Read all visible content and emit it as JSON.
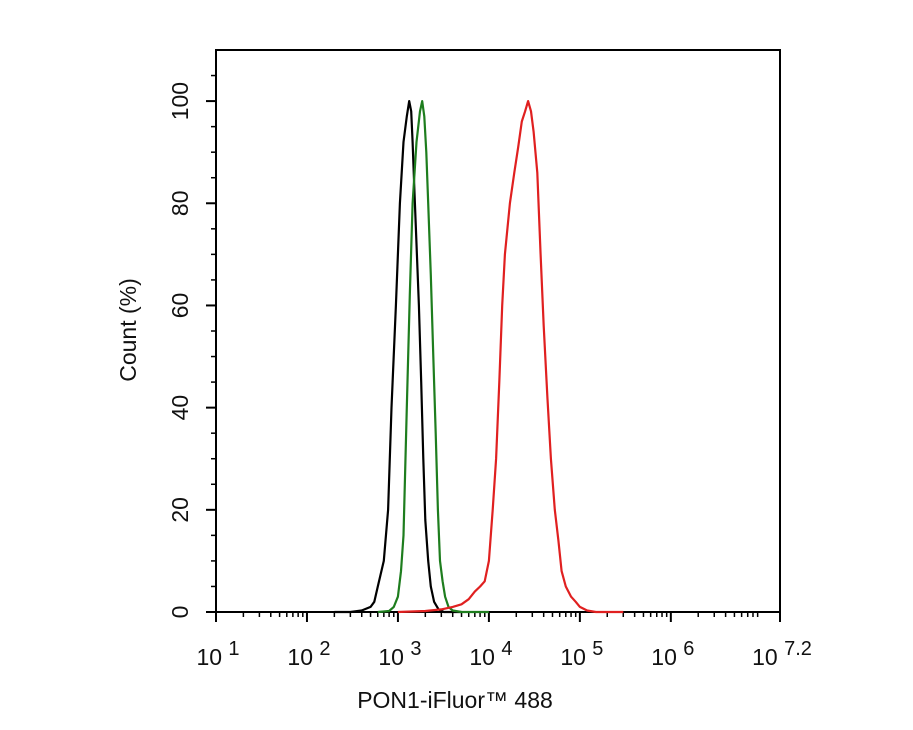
{
  "chart_data": {
    "type": "line",
    "title": "",
    "xlabel": "PON1-iFluor™ 488",
    "ylabel": "Count  (%)",
    "x_scale": "log10",
    "xlim": [
      10,
      15848931.92
    ],
    "ylim": [
      0,
      110
    ],
    "grid": false,
    "legend": "none",
    "x_ticks": [
      {
        "base": "10",
        "exp": "1"
      },
      {
        "base": "10",
        "exp": "2"
      },
      {
        "base": "10",
        "exp": "3"
      },
      {
        "base": "10",
        "exp": "4"
      },
      {
        "base": "10",
        "exp": "5"
      },
      {
        "base": "10",
        "exp": "6"
      },
      {
        "base": "10",
        "exp": "7.2"
      }
    ],
    "y_ticks": [
      "0",
      "20",
      "40",
      "60",
      "80",
      "100"
    ],
    "series": [
      {
        "color": "#000000",
        "points": [
          [
            200,
            0
          ],
          [
            300,
            0
          ],
          [
            400,
            0.3
          ],
          [
            500,
            1
          ],
          [
            550,
            2
          ],
          [
            600,
            5
          ],
          [
            700,
            10
          ],
          [
            780,
            20
          ],
          [
            850,
            40
          ],
          [
            950,
            60
          ],
          [
            1050,
            80
          ],
          [
            1150,
            92
          ],
          [
            1250,
            97
          ],
          [
            1330,
            100
          ],
          [
            1400,
            98
          ],
          [
            1450,
            92
          ],
          [
            1520,
            82
          ],
          [
            1600,
            72
          ],
          [
            1700,
            60
          ],
          [
            1800,
            45
          ],
          [
            1900,
            30
          ],
          [
            2000,
            18
          ],
          [
            2150,
            10
          ],
          [
            2300,
            5
          ],
          [
            2500,
            2
          ],
          [
            2800,
            0.5
          ],
          [
            3200,
            0
          ],
          [
            5000,
            0
          ]
        ]
      },
      {
        "color": "#1e7d1e",
        "points": [
          [
            600,
            0
          ],
          [
            800,
            0.2
          ],
          [
            900,
            1
          ],
          [
            1000,
            3
          ],
          [
            1080,
            8
          ],
          [
            1150,
            15
          ],
          [
            1250,
            40
          ],
          [
            1350,
            62
          ],
          [
            1450,
            80
          ],
          [
            1600,
            92
          ],
          [
            1750,
            98
          ],
          [
            1850,
            100
          ],
          [
            1950,
            97
          ],
          [
            2050,
            90
          ],
          [
            2150,
            80
          ],
          [
            2300,
            66
          ],
          [
            2450,
            50
          ],
          [
            2600,
            35
          ],
          [
            2750,
            20
          ],
          [
            2900,
            10
          ],
          [
            3100,
            6
          ],
          [
            3300,
            3
          ],
          [
            3600,
            1
          ],
          [
            4000,
            0.3
          ],
          [
            5000,
            0
          ],
          [
            10000,
            0
          ]
        ]
      },
      {
        "color": "#e02020",
        "points": [
          [
            1000,
            0
          ],
          [
            2000,
            0.2
          ],
          [
            3000,
            0.5
          ],
          [
            4000,
            1
          ],
          [
            5000,
            1.5
          ],
          [
            6000,
            2.5
          ],
          [
            7000,
            4
          ],
          [
            8000,
            5
          ],
          [
            9000,
            6
          ],
          [
            10000,
            10
          ],
          [
            11000,
            20
          ],
          [
            12000,
            30
          ],
          [
            13000,
            45
          ],
          [
            14000,
            60
          ],
          [
            15000,
            70
          ],
          [
            17000,
            80
          ],
          [
            19000,
            86
          ],
          [
            21000,
            91
          ],
          [
            23000,
            96
          ],
          [
            25000,
            98
          ],
          [
            27000,
            100
          ],
          [
            29000,
            98
          ],
          [
            31000,
            94
          ],
          [
            34000,
            86
          ],
          [
            37000,
            70
          ],
          [
            40000,
            56
          ],
          [
            44000,
            42
          ],
          [
            48000,
            30
          ],
          [
            53000,
            20
          ],
          [
            58000,
            14
          ],
          [
            63000,
            8
          ],
          [
            70000,
            5
          ],
          [
            80000,
            3
          ],
          [
            90000,
            2
          ],
          [
            100000,
            1
          ],
          [
            120000,
            0.3
          ],
          [
            150000,
            0
          ],
          [
            300000,
            0
          ]
        ]
      }
    ]
  }
}
